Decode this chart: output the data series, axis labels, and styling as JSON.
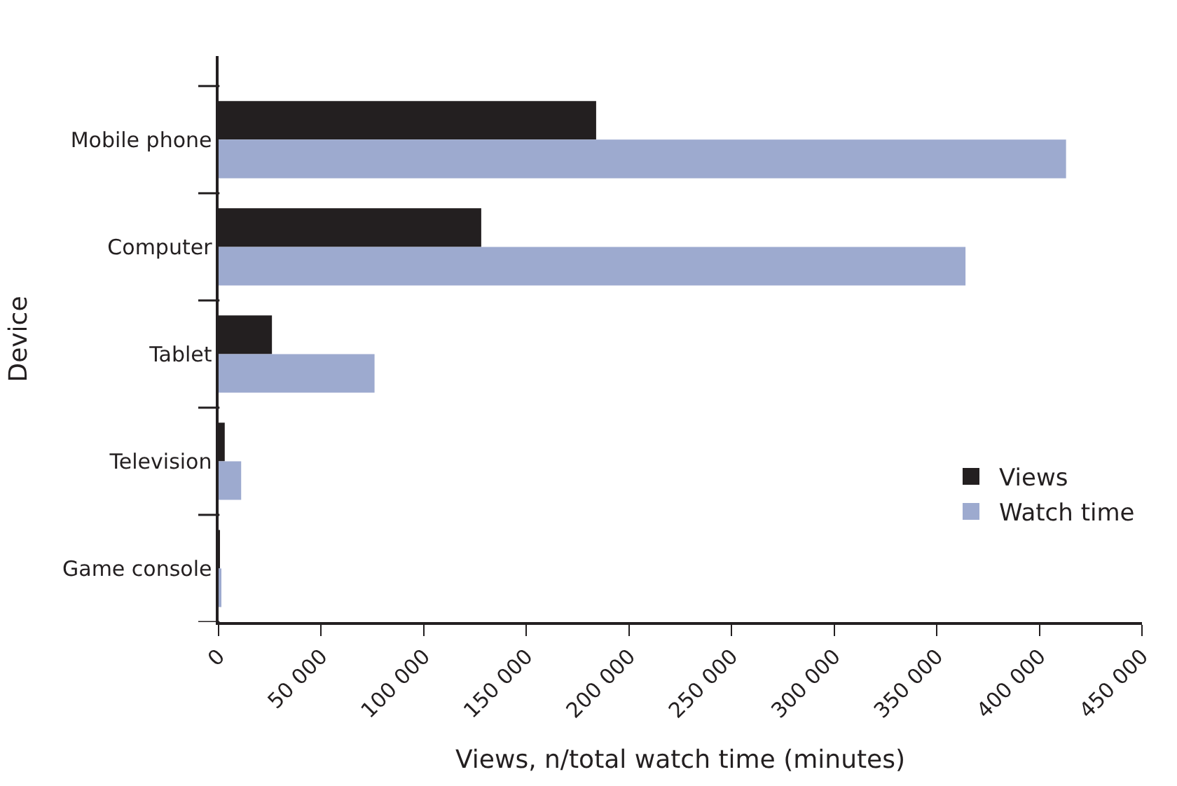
{
  "chart_data": {
    "type": "bar",
    "orientation": "horizontal",
    "xlabel": "Views, n/total watch time (minutes)",
    "ylabel": "Device",
    "categories": [
      "Mobile phone",
      "Computer",
      "Tablet",
      "Television",
      "Game console"
    ],
    "series": [
      {
        "name": "Views",
        "color": "#231f20",
        "values": [
          184000,
          128000,
          26000,
          3000,
          500
        ]
      },
      {
        "name": "Watch time",
        "color": "#9daacf",
        "values": [
          413000,
          364000,
          76000,
          11000,
          1200
        ]
      }
    ],
    "xlim": [
      0,
      450000
    ],
    "xticks": [
      0,
      {
        "value": 50000,
        "label": "50 000"
      },
      {
        "value": 100000,
        "label": "100 000"
      },
      {
        "value": 150000,
        "label": "150 000"
      },
      {
        "value": 200000,
        "label": "200 000"
      },
      {
        "value": 250000,
        "label": "250 000"
      },
      {
        "value": 300000,
        "label": "300 000"
      },
      {
        "value": 350000,
        "label": "350 000"
      },
      {
        "value": 400000,
        "label": "400 000"
      },
      {
        "value": 450000,
        "label": "450 000"
      }
    ],
    "legend": "bottom right"
  }
}
